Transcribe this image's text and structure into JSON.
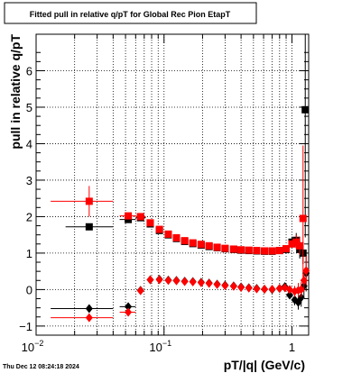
{
  "chart_data": {
    "type": "scatter",
    "title": "Fitted pull in relative q/pT for Global Rec Pion EtapT",
    "xlabel": "pT/|q| (GeV/c)",
    "ylabel": "pull in relative q/pT",
    "xscale": "log",
    "xlim": [
      0.01,
      1.35
    ],
    "ylim": [
      -1.25,
      7.0
    ],
    "x_ticks": [
      {
        "v": 0.01,
        "base": "10",
        "exp": "−2"
      },
      {
        "v": 0.1,
        "base": "10",
        "exp": "−1"
      },
      {
        "v": 1,
        "base": "1",
        "exp": ""
      }
    ],
    "y_ticks": [
      -1,
      0,
      1,
      2,
      3,
      4,
      5,
      6
    ],
    "y_tick_labels": [
      "−1",
      "0",
      "1",
      "2",
      "3",
      "4",
      "5",
      "6"
    ],
    "grid": true,
    "timestamp": "Thu Dec 12 08:24:18 2024",
    "series": [
      {
        "marker": "square",
        "color": "#000000",
        "points": [
          {
            "x": 0.026,
            "y": 1.72,
            "xerr": [
              0.017,
              0.04
            ],
            "yerr": 0.05
          },
          {
            "x": 0.0525,
            "y": 1.92,
            "xerr": [
              0.045,
              0.06
            ],
            "yerr": 0.04
          },
          {
            "x": 0.0655,
            "y": 1.97,
            "xerr": [
              0.06,
              0.072
            ],
            "yerr": 0.04
          },
          {
            "x": 0.078,
            "y": 1.8
          },
          {
            "x": 0.092,
            "y": 1.62
          },
          {
            "x": 0.108,
            "y": 1.5
          },
          {
            "x": 0.125,
            "y": 1.4
          },
          {
            "x": 0.145,
            "y": 1.32
          },
          {
            "x": 0.168,
            "y": 1.26
          },
          {
            "x": 0.195,
            "y": 1.22
          },
          {
            "x": 0.225,
            "y": 1.18
          },
          {
            "x": 0.26,
            "y": 1.15
          },
          {
            "x": 0.3,
            "y": 1.12
          },
          {
            "x": 0.35,
            "y": 1.1
          },
          {
            "x": 0.4,
            "y": 1.08
          },
          {
            "x": 0.46,
            "y": 1.07
          },
          {
            "x": 0.53,
            "y": 1.06
          },
          {
            "x": 0.61,
            "y": 1.05
          },
          {
            "x": 0.7,
            "y": 1.05
          },
          {
            "x": 0.8,
            "y": 1.07
          },
          {
            "x": 0.9,
            "y": 1.1
          },
          {
            "x": 1.0,
            "y": 1.3,
            "yerr": 0.15
          },
          {
            "x": 1.08,
            "y": 1.35,
            "yerr": 0.2
          },
          {
            "x": 1.15,
            "y": 1.1,
            "yerr": 0.25
          },
          {
            "x": 1.22,
            "y": 1.0,
            "yerr": 0.3
          },
          {
            "x": 1.27,
            "y": 4.93,
            "yerr": 3.5
          }
        ]
      },
      {
        "marker": "square",
        "color": "#ff0000",
        "points": [
          {
            "x": 0.026,
            "y": 2.42,
            "xerr": [
              0.013,
              0.04
            ],
            "yerr": 0.42
          },
          {
            "x": 0.0525,
            "y": 2.02,
            "xerr": [
              0.045,
              0.06
            ],
            "yerr": 0.06
          },
          {
            "x": 0.0655,
            "y": 2.0,
            "xerr": [
              0.06,
              0.072
            ],
            "yerr": 0.05
          },
          {
            "x": 0.078,
            "y": 1.83
          },
          {
            "x": 0.092,
            "y": 1.65
          },
          {
            "x": 0.108,
            "y": 1.52
          },
          {
            "x": 0.125,
            "y": 1.42
          },
          {
            "x": 0.145,
            "y": 1.34
          },
          {
            "x": 0.168,
            "y": 1.28
          },
          {
            "x": 0.195,
            "y": 1.24
          },
          {
            "x": 0.225,
            "y": 1.2
          },
          {
            "x": 0.26,
            "y": 1.16
          },
          {
            "x": 0.3,
            "y": 1.13
          },
          {
            "x": 0.35,
            "y": 1.11
          },
          {
            "x": 0.4,
            "y": 1.09
          },
          {
            "x": 0.46,
            "y": 1.08
          },
          {
            "x": 0.53,
            "y": 1.07
          },
          {
            "x": 0.61,
            "y": 1.06
          },
          {
            "x": 0.7,
            "y": 1.06
          },
          {
            "x": 0.8,
            "y": 1.07
          },
          {
            "x": 0.9,
            "y": 1.12
          },
          {
            "x": 1.0,
            "y": 1.25,
            "yerr": 0.1
          },
          {
            "x": 1.08,
            "y": 1.3,
            "yerr": 0.2
          },
          {
            "x": 1.15,
            "y": 1.2,
            "yerr": 0.25
          },
          {
            "x": 1.22,
            "y": 1.95,
            "yerr": 2.0
          }
        ]
      },
      {
        "marker": "diamond",
        "color": "#000000",
        "points": [
          {
            "x": 0.026,
            "y": -0.52,
            "xerr": [
              0.013,
              0.04
            ],
            "yerr": 0.05
          },
          {
            "x": 0.0525,
            "y": -0.47,
            "xerr": [
              0.045,
              0.06
            ],
            "yerr": 0.04
          },
          {
            "x": 0.0655,
            "y": -0.02
          },
          {
            "x": 0.078,
            "y": 0.27
          },
          {
            "x": 0.092,
            "y": 0.28
          },
          {
            "x": 0.108,
            "y": 0.26
          },
          {
            "x": 0.125,
            "y": 0.25
          },
          {
            "x": 0.145,
            "y": 0.23
          },
          {
            "x": 0.168,
            "y": 0.22
          },
          {
            "x": 0.195,
            "y": 0.2
          },
          {
            "x": 0.225,
            "y": 0.18
          },
          {
            "x": 0.26,
            "y": 0.15
          },
          {
            "x": 0.3,
            "y": 0.12
          },
          {
            "x": 0.35,
            "y": 0.1
          },
          {
            "x": 0.4,
            "y": 0.07
          },
          {
            "x": 0.46,
            "y": 0.05
          },
          {
            "x": 0.53,
            "y": 0.03
          },
          {
            "x": 0.61,
            "y": 0.01
          },
          {
            "x": 0.7,
            "y": 0.0
          },
          {
            "x": 0.8,
            "y": 0.03
          },
          {
            "x": 0.88,
            "y": 0.08
          },
          {
            "x": 0.96,
            "y": -0.15,
            "yerr": 0.1
          },
          {
            "x": 1.05,
            "y": -0.28,
            "yerr": 0.15
          },
          {
            "x": 1.12,
            "y": -0.35,
            "yerr": 0.2
          },
          {
            "x": 1.18,
            "y": -0.22,
            "yerr": 0.25
          },
          {
            "x": 1.24,
            "y": 0.1,
            "yerr": 0.3
          },
          {
            "x": 1.29,
            "y": 0.45,
            "yerr": 0.5
          }
        ]
      },
      {
        "marker": "diamond",
        "color": "#ff0000",
        "points": [
          {
            "x": 0.026,
            "y": -0.77,
            "xerr": [
              0.013,
              0.04
            ],
            "yerr": 0.06
          },
          {
            "x": 0.0525,
            "y": -0.62,
            "xerr": [
              0.045,
              0.06
            ],
            "yerr": 0.05
          },
          {
            "x": 0.0655,
            "y": -0.03
          },
          {
            "x": 0.078,
            "y": 0.27
          },
          {
            "x": 0.092,
            "y": 0.27
          },
          {
            "x": 0.108,
            "y": 0.25
          },
          {
            "x": 0.125,
            "y": 0.24
          },
          {
            "x": 0.145,
            "y": 0.22
          },
          {
            "x": 0.168,
            "y": 0.21
          },
          {
            "x": 0.195,
            "y": 0.19
          },
          {
            "x": 0.225,
            "y": 0.17
          },
          {
            "x": 0.26,
            "y": 0.14
          },
          {
            "x": 0.3,
            "y": 0.11
          },
          {
            "x": 0.35,
            "y": 0.09
          },
          {
            "x": 0.4,
            "y": 0.06
          },
          {
            "x": 0.46,
            "y": 0.04
          },
          {
            "x": 0.53,
            "y": 0.02
          },
          {
            "x": 0.61,
            "y": 0.01
          },
          {
            "x": 0.7,
            "y": 0.01
          },
          {
            "x": 0.8,
            "y": 0.03
          },
          {
            "x": 0.88,
            "y": 0.05
          },
          {
            "x": 0.96,
            "y": 0.0,
            "yerr": 0.1
          },
          {
            "x": 1.05,
            "y": -0.05,
            "yerr": 0.15
          },
          {
            "x": 1.12,
            "y": -0.02,
            "yerr": 0.2
          },
          {
            "x": 1.18,
            "y": 0.0,
            "yerr": 0.2
          },
          {
            "x": 1.24,
            "y": 0.25,
            "yerr": 0.3
          },
          {
            "x": 1.29,
            "y": 0.52,
            "yerr": 0.4
          }
        ]
      }
    ]
  }
}
